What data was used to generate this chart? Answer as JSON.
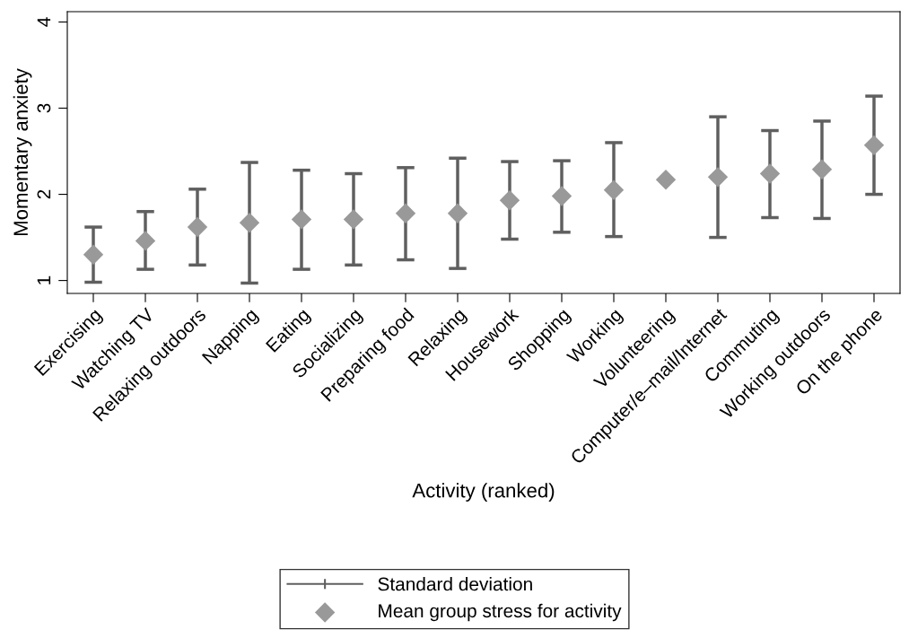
{
  "chart_data": {
    "type": "scatter",
    "xlabel": "Activity (ranked)",
    "ylabel": "Momentary anxiety",
    "categories": [
      "Exercising",
      "Watching TV",
      "Relaxing outdoors",
      "Napping",
      "Eating",
      "Socializing",
      "Preparing food",
      "Relaxing",
      "Housework",
      "Shopping",
      "Working",
      "Volunteering",
      "Computer/e–mail/Internet",
      "Commuting",
      "Working outdoors",
      "On the phone"
    ],
    "series": [
      {
        "name": "Mean group stress for activity",
        "color": "#999999",
        "values": [
          1.3,
          1.46,
          1.62,
          1.67,
          1.71,
          1.71,
          1.78,
          1.78,
          1.93,
          1.98,
          2.05,
          2.17,
          2.2,
          2.24,
          2.29,
          2.57
        ],
        "errors": [
          [
            0.98,
            1.62
          ],
          [
            1.13,
            1.8
          ],
          [
            1.18,
            2.06
          ],
          [
            0.97,
            2.37
          ],
          [
            1.13,
            2.28
          ],
          [
            1.18,
            2.24
          ],
          [
            1.24,
            2.31
          ],
          [
            1.14,
            2.42
          ],
          [
            1.48,
            2.38
          ],
          [
            1.56,
            2.39
          ],
          [
            1.51,
            2.6
          ],
          null,
          [
            1.5,
            2.9
          ],
          [
            1.73,
            2.74
          ],
          [
            1.72,
            2.85
          ],
          [
            2.0,
            3.14
          ]
        ]
      }
    ],
    "annotations": [
      "Standard deviation"
    ],
    "ylim": [
      0.85,
      4.12
    ],
    "yticks": [
      1,
      2,
      3,
      4
    ],
    "marker": "diamond",
    "grid": false,
    "legend": "bottom"
  }
}
